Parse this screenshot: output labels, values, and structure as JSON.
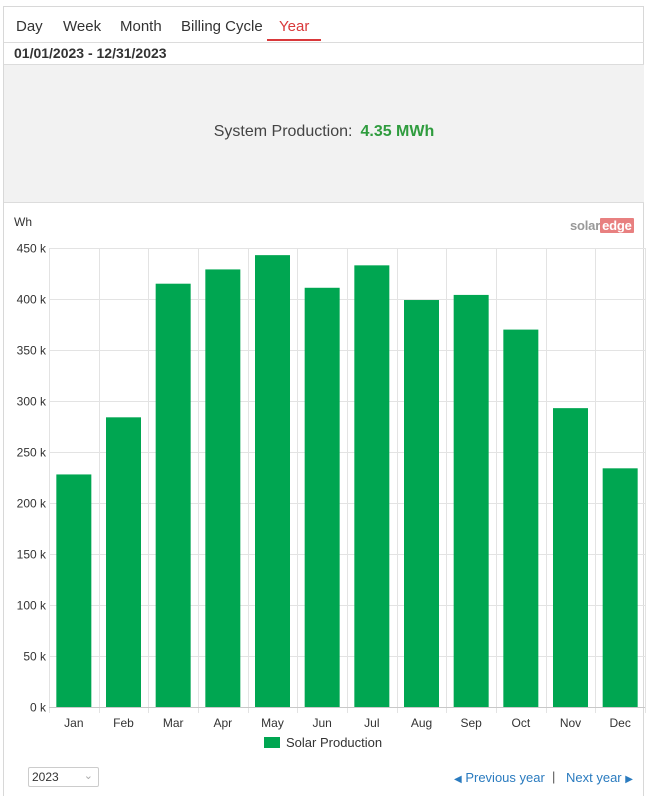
{
  "tabs": [
    {
      "label": "Day"
    },
    {
      "label": "Week"
    },
    {
      "label": "Month"
    },
    {
      "label": "Billing Cycle"
    },
    {
      "label": "Year",
      "active": true
    }
  ],
  "date_range": "01/01/2023 - 12/31/2023",
  "summary": {
    "label": "System Production:",
    "value": "4.35 MWh",
    "value_color": "#2f9c3e"
  },
  "logo": {
    "part1": "solar",
    "part2": "edge"
  },
  "chart_data": {
    "type": "bar",
    "unit_label": "Wh",
    "categories": [
      "Jan",
      "Feb",
      "Mar",
      "Apr",
      "May",
      "Jun",
      "Jul",
      "Aug",
      "Sep",
      "Oct",
      "Nov",
      "Dec"
    ],
    "series": [
      {
        "name": "Solar Production",
        "color": "#00a651",
        "values": [
          228000,
          284000,
          415000,
          429000,
          443000,
          411000,
          433000,
          399000,
          404000,
          370000,
          293000,
          234000
        ]
      }
    ],
    "ylim": [
      0,
      450000
    ],
    "yticks": [
      0,
      50000,
      100000,
      150000,
      200000,
      250000,
      300000,
      350000,
      400000,
      450000
    ],
    "ytick_labels": [
      "0 k",
      "50 k",
      "100 k",
      "150 k",
      "200 k",
      "250 k",
      "300 k",
      "350 k",
      "400 k",
      "450 k"
    ],
    "grid": true,
    "legend": "bottom"
  },
  "year_select": {
    "value": "2023"
  },
  "nav": {
    "previous": "Previous year",
    "separator": "|",
    "next": "Next year"
  }
}
